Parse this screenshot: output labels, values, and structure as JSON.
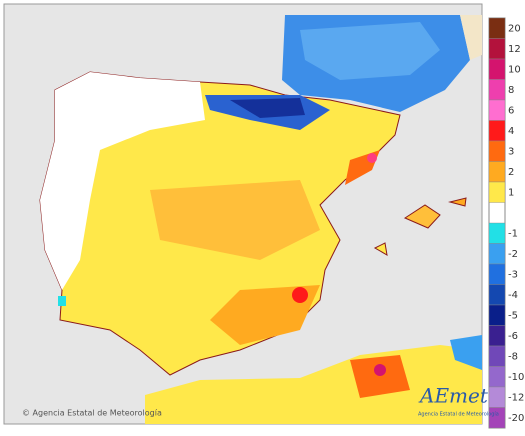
{
  "legend": {
    "items": [
      {
        "label": "20",
        "color": "#7a2e12"
      },
      {
        "label": "12",
        "color": "#b3123c"
      },
      {
        "label": "10",
        "color": "#d4146e"
      },
      {
        "label": "8",
        "color": "#ee3fae"
      },
      {
        "label": "6",
        "color": "#ff6ed0"
      },
      {
        "label": "4",
        "color": "#ff1a1a"
      },
      {
        "label": "3",
        "color": "#ff6a10"
      },
      {
        "label": "2",
        "color": "#ffaa20"
      },
      {
        "label": "1",
        "color": "#ffe84a"
      },
      {
        "label": "-1",
        "color": "#22e0e6"
      },
      {
        "label": "-2",
        "color": "#3aa0f0"
      },
      {
        "label": "-3",
        "color": "#2070e0"
      },
      {
        "label": "-4",
        "color": "#1448b0"
      },
      {
        "label": "-5",
        "color": "#0a1f8a"
      },
      {
        "label": "-6",
        "color": "#3a2090"
      },
      {
        "label": "-8",
        "color": "#7048b8"
      },
      {
        "label": "-10",
        "color": "#9468cc"
      },
      {
        "label": "-12",
        "color": "#b48ad8"
      },
      {
        "label": "-20",
        "color": "#a444b8"
      }
    ]
  },
  "footer": {
    "credit": "© Agencia Estatal de Meteorología",
    "logo": "AEmet",
    "logo_caption": "Agencia Estatal de Meteorología"
  }
}
